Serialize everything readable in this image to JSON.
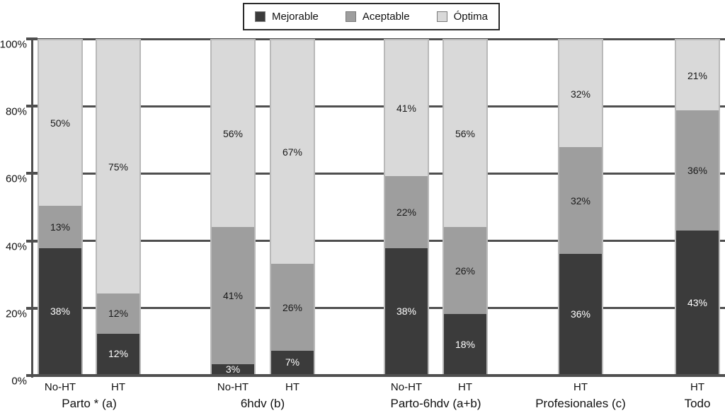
{
  "chart_data": {
    "type": "bar",
    "stacked": true,
    "percent_scale": true,
    "title": "",
    "xlabel": "",
    "ylabel": "",
    "ylim": [
      0,
      100
    ],
    "y_ticks": [
      0,
      20,
      40,
      60,
      80,
      100
    ],
    "y_tick_suffix": "%",
    "grid": true,
    "legend_position": "top-center",
    "series": [
      "Mejorable",
      "Aceptable",
      "Óptima"
    ],
    "series_colors": [
      "#3b3b3b",
      "#9e9e9e",
      "#d9d9d9"
    ],
    "data_label_suffix": "%",
    "groups": [
      {
        "label": "Parto * (a)",
        "bars": [
          {
            "x_label": "No-HT",
            "values": [
              38,
              13,
              50
            ]
          },
          {
            "x_label": "HT",
            "values": [
              12,
              12,
              75
            ]
          }
        ]
      },
      {
        "label": "6hdv (b)",
        "bars": [
          {
            "x_label": "No-HT",
            "values": [
              3,
              41,
              56
            ]
          },
          {
            "x_label": "HT",
            "values": [
              7,
              26,
              67
            ]
          }
        ]
      },
      {
        "label": "Parto-6hdv (a+b)",
        "bars": [
          {
            "x_label": "No-HT",
            "values": [
              38,
              22,
              41
            ]
          },
          {
            "x_label": "HT",
            "values": [
              18,
              26,
              56
            ]
          }
        ]
      },
      {
        "label": "Profesionales (c)",
        "bars": [
          {
            "x_label": "HT",
            "values": [
              36,
              32,
              32
            ]
          }
        ]
      },
      {
        "label": "Todo",
        "bars": [
          {
            "x_label": "HT",
            "values": [
              43,
              36,
              21
            ]
          }
        ]
      }
    ]
  },
  "colors": {
    "mejorable": "#3b3b3b",
    "aceptable": "#9e9e9e",
    "optima": "#d9d9d9",
    "gridline": "#4f4f4f",
    "bar_border": "#b9b9b9",
    "label_on_dark": "#ffffff",
    "label_on_light": "#1a1a1a"
  }
}
